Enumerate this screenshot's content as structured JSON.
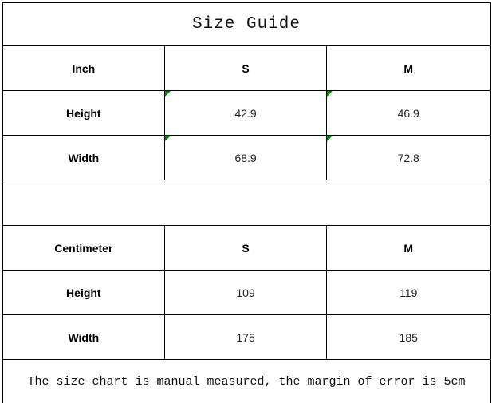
{
  "title": "Size Guide",
  "footer_note": "The size chart is manual measured, the margin of error is 5cm",
  "colors": {
    "border": "#000000",
    "text": "#1a1a1a",
    "indicator_green": "#008000"
  },
  "chart_data": {
    "type": "table",
    "title": "Size Guide",
    "sections": [
      {
        "unit": "Inch",
        "columns": [
          "S",
          "M"
        ],
        "rows": [
          {
            "label": "Height",
            "values": [
              "42.9",
              "46.9"
            ]
          },
          {
            "label": "Width",
            "values": [
              "68.9",
              "72.8"
            ]
          }
        ]
      },
      {
        "unit": "Centimeter",
        "columns": [
          "S",
          "M"
        ],
        "rows": [
          {
            "label": "Height",
            "values": [
              "109",
              "119"
            ]
          },
          {
            "label": "Width",
            "values": [
              "175",
              "185"
            ]
          }
        ]
      }
    ],
    "footnote": "The size chart is manual measured, the margin of error is 5cm"
  }
}
